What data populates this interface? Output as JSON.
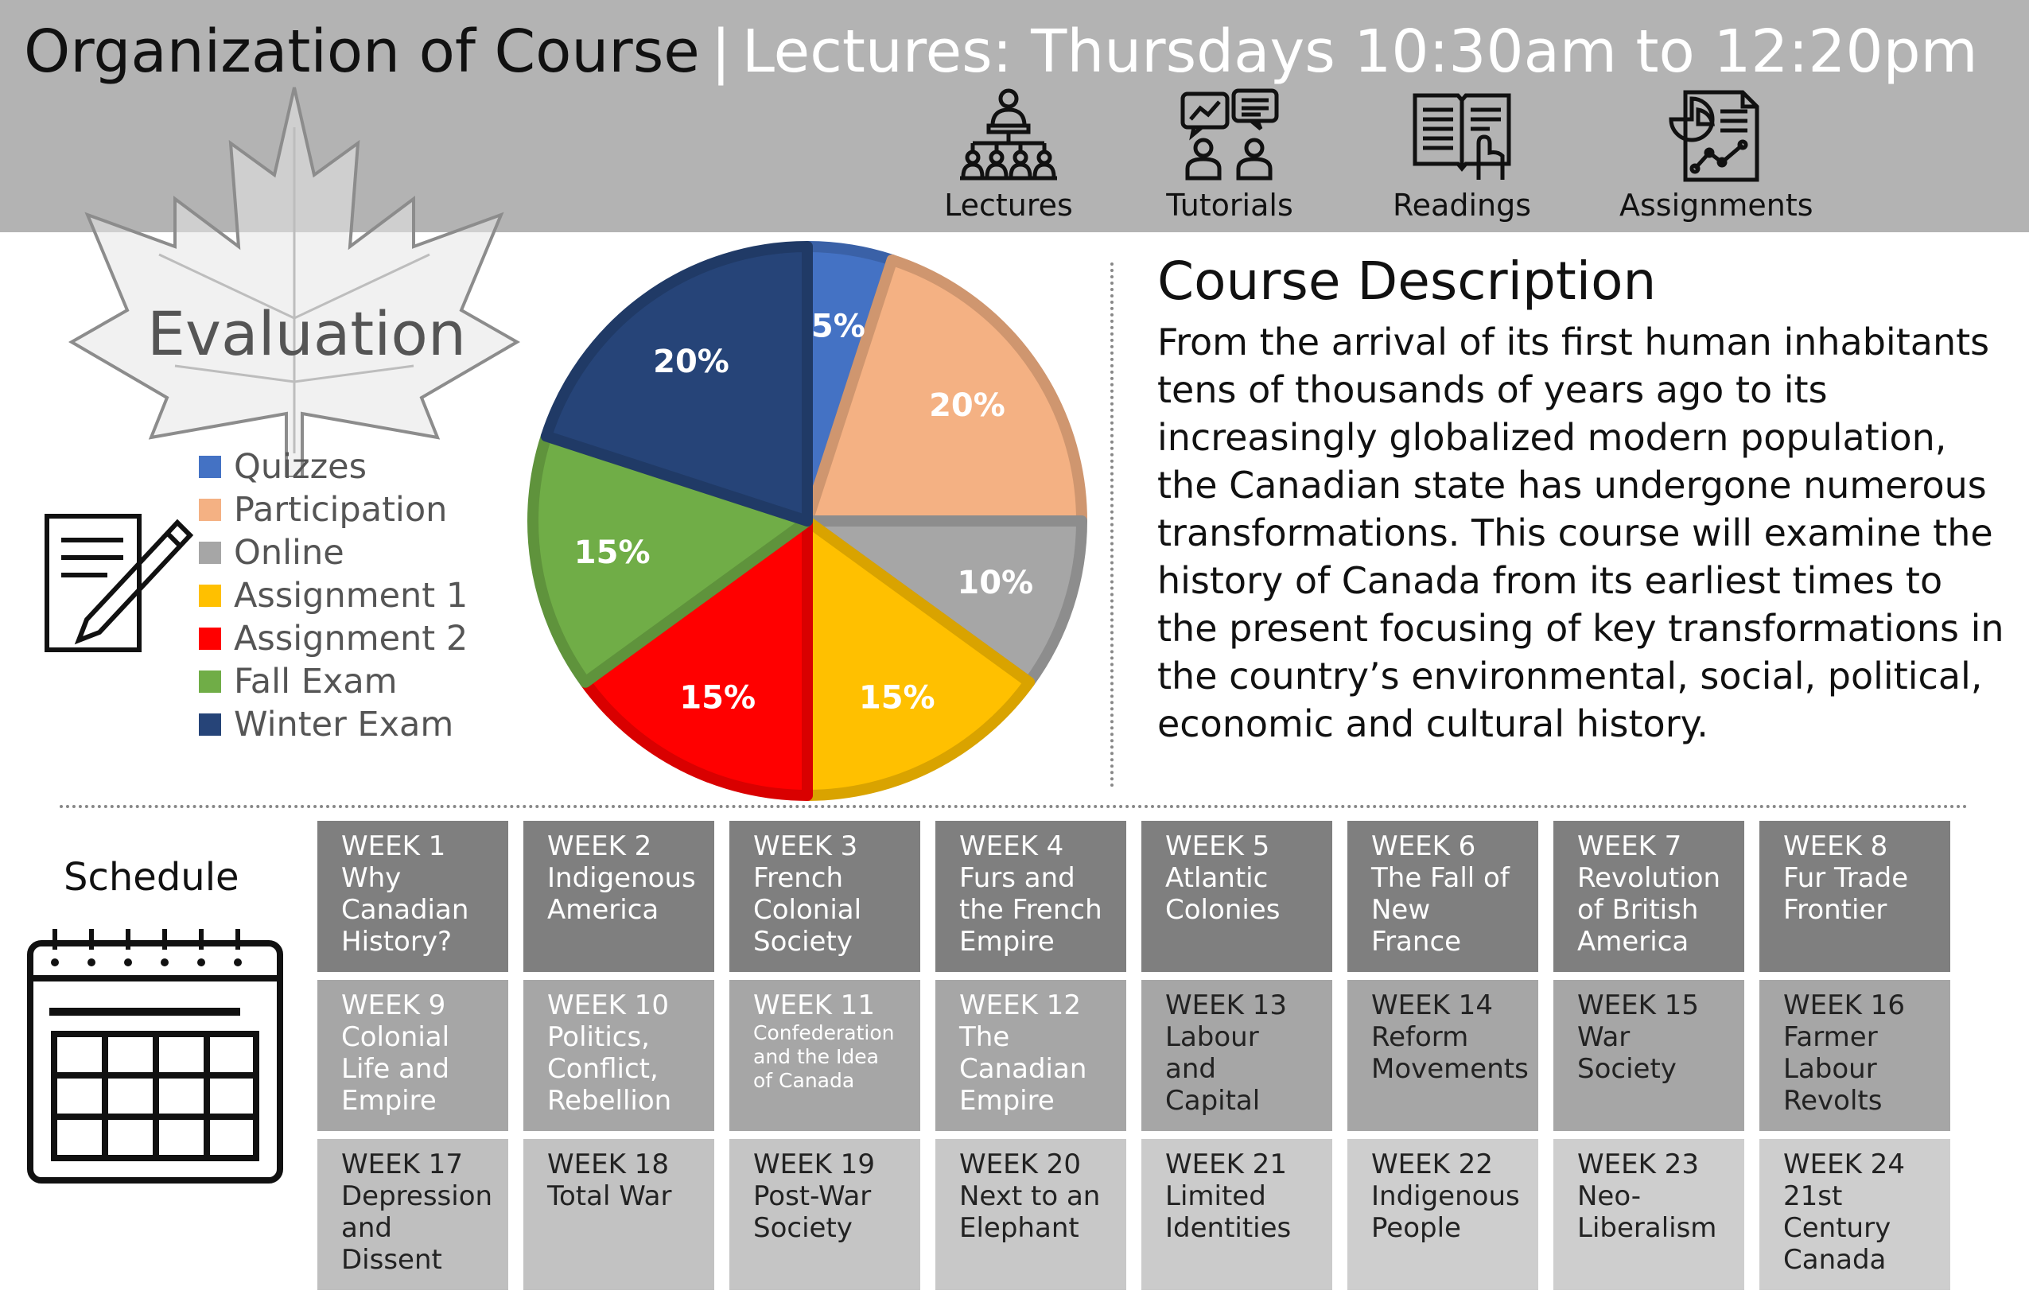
{
  "header": {
    "title_left": "Organization of Course",
    "separator": "|",
    "title_right": "Lectures: Thursdays 10:30am to 12:20pm",
    "icons": [
      {
        "label": "Lectures",
        "icon": "lectures-icon"
      },
      {
        "label": "Tutorials",
        "icon": "tutorials-icon"
      },
      {
        "label": "Readings",
        "icon": "readings-icon"
      },
      {
        "label": "Assignments",
        "icon": "assignments-icon"
      }
    ]
  },
  "evaluation": {
    "title": "Evaluation"
  },
  "chart_data": {
    "type": "pie",
    "slices": [
      {
        "name": "Quizzes",
        "value": 5,
        "label": "5%",
        "color": "#4472c4"
      },
      {
        "name": "Participation",
        "value": 20,
        "label": "20%",
        "color": "#f4b183"
      },
      {
        "name": "Online",
        "value": 10,
        "label": "10%",
        "color": "#a6a6a6"
      },
      {
        "name": "Assignment 1",
        "value": 15,
        "label": "15%",
        "color": "#ffc000"
      },
      {
        "name": "Assignment 2",
        "value": 15,
        "label": "15%",
        "color": "#ff0000"
      },
      {
        "name": "Fall Exam",
        "value": 15,
        "label": "15%",
        "color": "#70ad47"
      },
      {
        "name": "Winter Exam",
        "value": 20,
        "label": "20%",
        "color": "#264478"
      }
    ],
    "legend_position": "left"
  },
  "description": {
    "title": "Course Description",
    "text": "From the arrival of its first human inhabitants tens of thousands of years ago to its increasingly globalized modern population, the Canadian state has undergone numerous transformations. This course will examine the history of Canada from its earliest times to the present focusing of key transformations in the country’s environmental, social, political, economic and cultural history."
  },
  "schedule": {
    "title": "Schedule",
    "weeks": [
      {
        "week": "WEEK 1",
        "topic": "Why Canadian History?"
      },
      {
        "week": "WEEK 2",
        "topic": "Indigenous America"
      },
      {
        "week": "WEEK 3",
        "topic": "French Colonial Society"
      },
      {
        "week": "WEEK 4",
        "topic": "Furs and the French Empire"
      },
      {
        "week": "WEEK 5",
        "topic": "Atlantic Colonies"
      },
      {
        "week": "WEEK 6",
        "topic": "The Fall of New France"
      },
      {
        "week": "WEEK 7",
        "topic": "Revolution of British America"
      },
      {
        "week": "WEEK 8",
        "topic": "Fur Trade Frontier"
      },
      {
        "week": "WEEK 9",
        "topic": "Colonial Life and Empire"
      },
      {
        "week": "WEEK 10",
        "topic": "Politics, Conflict, Rebellion"
      },
      {
        "week": "WEEK 11",
        "topic": "Confederation and the Idea of Canada"
      },
      {
        "week": "WEEK 12",
        "topic": "The Canadian Empire"
      },
      {
        "week": "WEEK 13",
        "topic": "Labour and Capital"
      },
      {
        "week": "WEEK 14",
        "topic": "Reform Movements"
      },
      {
        "week": "WEEK 15",
        "topic": "War Society"
      },
      {
        "week": "WEEK 16",
        "topic": "Farmer Labour Revolts"
      },
      {
        "week": "WEEK 17",
        "topic": "Depression and Dissent"
      },
      {
        "week": "WEEK 18",
        "topic": "Total War"
      },
      {
        "week": "WEEK 19",
        "topic": "Post-War Society"
      },
      {
        "week": "WEEK 20",
        "topic": "Next to an Elephant"
      },
      {
        "week": "WEEK 21",
        "topic": "Limited Identities"
      },
      {
        "week": "WEEK 22",
        "topic": "Indigenous People"
      },
      {
        "week": "WEEK 23",
        "topic": "Neo-Liberalism"
      },
      {
        "week": "WEEK 24",
        "topic": "21st Century Canada"
      }
    ]
  }
}
